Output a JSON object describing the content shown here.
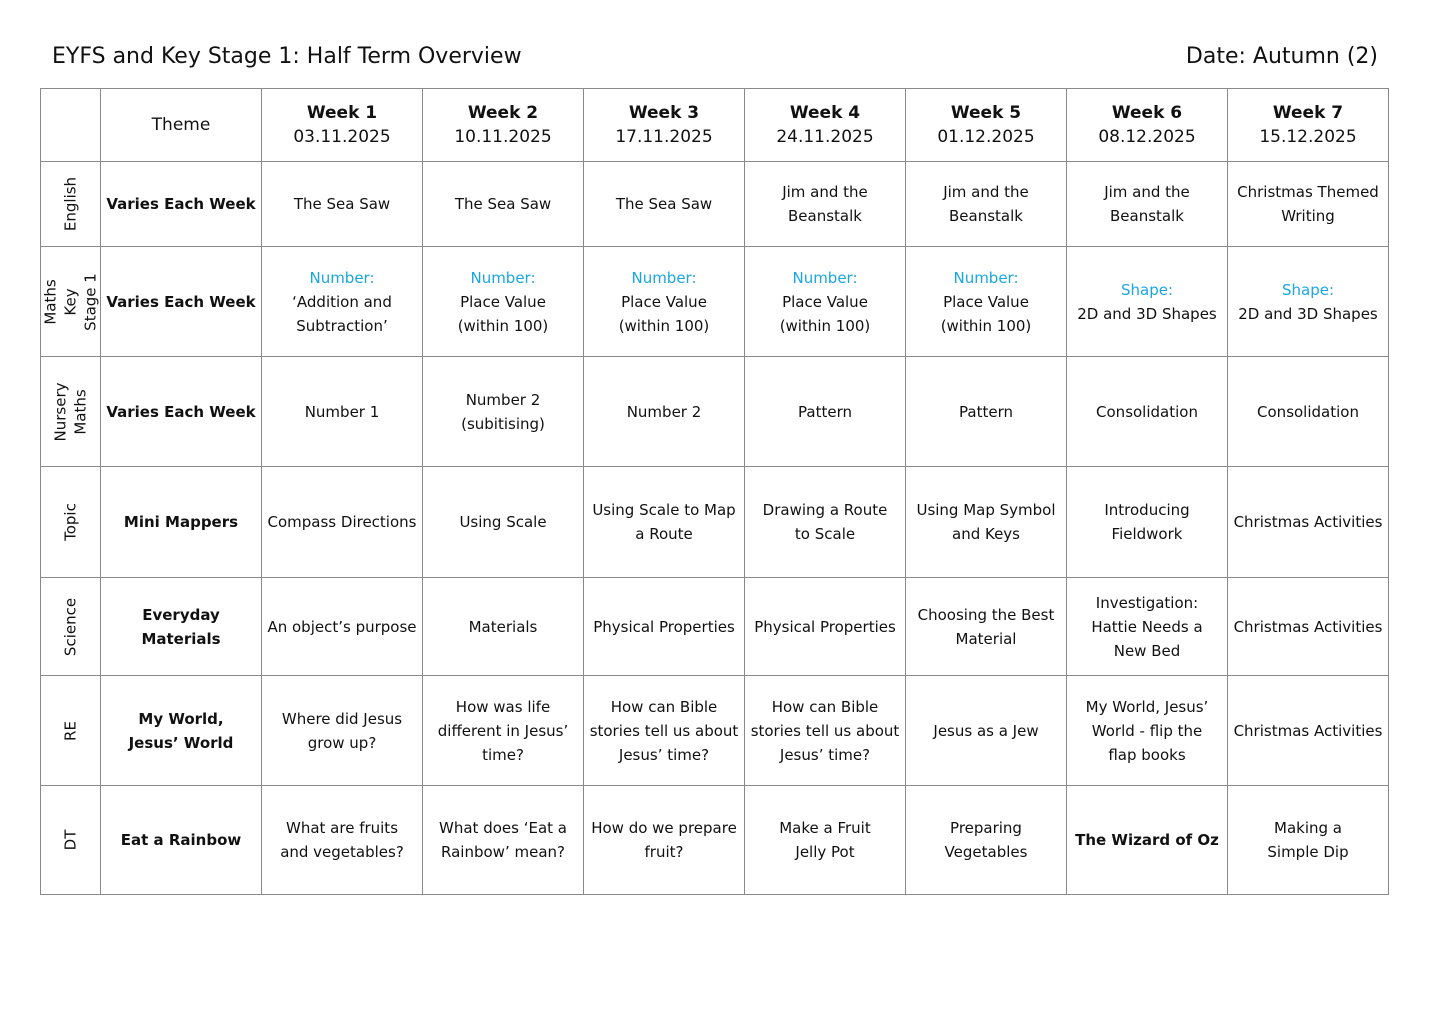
{
  "title": "EYFS and Key Stage 1: Half Term Overview",
  "date": "Date: Autumn (2)",
  "accent_color": "#1aa7e0",
  "header": {
    "theme": "Theme",
    "weeks": [
      {
        "name": "Week 1",
        "date": "03.11.2025"
      },
      {
        "name": "Week 2",
        "date": "10.11.2025"
      },
      {
        "name": "Week 3",
        "date": "17.11.2025"
      },
      {
        "name": "Week 4",
        "date": "24.11.2025"
      },
      {
        "name": "Week 5",
        "date": "01.12.2025"
      },
      {
        "name": "Week 6",
        "date": "08.12.2025"
      },
      {
        "name": "Week 7",
        "date": "15.12.2025"
      }
    ]
  },
  "rows": [
    {
      "subject": "English",
      "theme": "Varies Each Week",
      "cells": [
        {
          "text": "The Sea Saw"
        },
        {
          "text": "The Sea Saw"
        },
        {
          "text": "The Sea Saw"
        },
        {
          "text": "Jim and the\nBeanstalk"
        },
        {
          "text": "Jim and the\nBeanstalk"
        },
        {
          "text": "Jim and the\nBeanstalk"
        },
        {
          "text": "Christmas Themed\nWriting"
        }
      ]
    },
    {
      "subject": "Maths\nKey Stage 1",
      "theme": "Varies Each Week",
      "cells": [
        {
          "label": "Number:",
          "text": "‘Addition and\nSubtraction’"
        },
        {
          "label": "Number:",
          "text": "Place Value\n(within 100)"
        },
        {
          "label": "Number:",
          "text": "Place Value\n(within 100)"
        },
        {
          "label": "Number:",
          "text": "Place Value\n(within 100)"
        },
        {
          "label": "Number:",
          "text": "Place Value\n(within 100)"
        },
        {
          "label": "Shape:",
          "text": "2D and 3D Shapes"
        },
        {
          "label": "Shape:",
          "text": "2D and 3D Shapes"
        }
      ]
    },
    {
      "subject": "Nursery\nMaths",
      "theme": "Varies Each Week",
      "cells": [
        {
          "text": "Number 1"
        },
        {
          "text": "Number 2\n(subitising)"
        },
        {
          "text": "Number 2"
        },
        {
          "text": "Pattern"
        },
        {
          "text": "Pattern"
        },
        {
          "text": "Consolidation"
        },
        {
          "text": "Consolidation"
        }
      ]
    },
    {
      "subject": "Topic",
      "theme": "Mini Mappers",
      "cells": [
        {
          "text": "Compass Directions"
        },
        {
          "text": "Using Scale"
        },
        {
          "text": "Using Scale to Map\na Route"
        },
        {
          "text": "Drawing a Route\nto Scale"
        },
        {
          "text": "Using Map Symbol\nand Keys"
        },
        {
          "text": "Introducing\nFieldwork"
        },
        {
          "text": "Christmas Activities"
        }
      ]
    },
    {
      "subject": "Science",
      "theme": "Everyday Materials",
      "cells": [
        {
          "text": "An object’s purpose"
        },
        {
          "text": "Materials"
        },
        {
          "text": "Physical Properties"
        },
        {
          "text": "Physical Properties"
        },
        {
          "text": "Choosing the Best\nMaterial"
        },
        {
          "text": "Investigation:\nHattie Needs a\nNew Bed"
        },
        {
          "text": "Christmas Activities"
        }
      ]
    },
    {
      "subject": "RE",
      "theme": "My World,\nJesus’ World",
      "cells": [
        {
          "text": "Where did Jesus\ngrow up?"
        },
        {
          "text": "How was life\ndifferent in Jesus’\ntime?"
        },
        {
          "text": "How can Bible\nstories tell us about\nJesus’ time?"
        },
        {
          "text": "How can Bible\nstories tell us about\nJesus’ time?"
        },
        {
          "text": "Jesus as a Jew"
        },
        {
          "text": "My World, Jesus’\nWorld - flip the\nflap books"
        },
        {
          "text": "Christmas Activities"
        }
      ]
    },
    {
      "subject": "DT",
      "theme": "Eat a Rainbow",
      "cells": [
        {
          "text": "What are fruits\nand vegetables?"
        },
        {
          "text": "What does ‘Eat a\nRainbow’ mean?"
        },
        {
          "text": "How do we prepare\nfruit?"
        },
        {
          "text": "Make a Fruit\nJelly Pot"
        },
        {
          "text": "Preparing\nVegetables"
        },
        {
          "text": "The Wizard of Oz",
          "emphasis": "bold"
        },
        {
          "text": "Making a\nSimple Dip"
        }
      ]
    }
  ]
}
